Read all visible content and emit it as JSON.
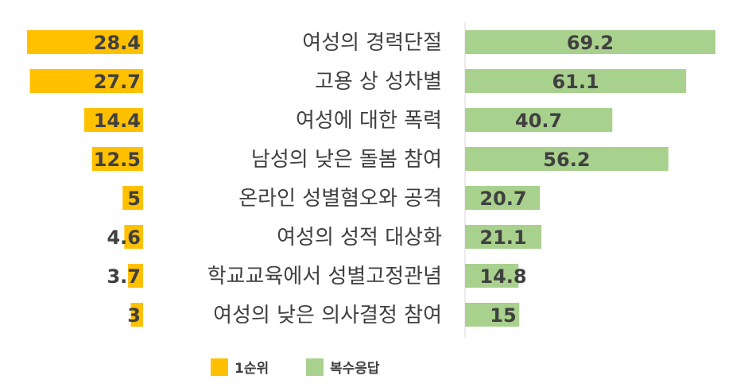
{
  "chart_data": {
    "type": "bar",
    "categories": [
      "여성의 경력단절",
      "고용 상 성차별",
      "여성에 대한 폭력",
      "남성의 낮은 돌봄 참여",
      "온라인 성별혐오와 공격",
      "여성의 성적 대상화",
      "학교교육에서 성별고정관념",
      "여성의 낮은 의사결정 참여"
    ],
    "series": [
      {
        "name": "1순위",
        "color": "#FFC000",
        "values": [
          28.4,
          27.7,
          14.4,
          12.5,
          5,
          4.6,
          3.7,
          3
        ],
        "labels": [
          "28.4",
          "27.7",
          "14.4",
          "12.5",
          "5",
          "4.6",
          "3.7",
          "3"
        ]
      },
      {
        "name": "복수응답",
        "color": "#A9D18E",
        "values": [
          69.2,
          61.1,
          40.7,
          56.2,
          20.7,
          21.1,
          14.8,
          15
        ],
        "labels": [
          "69.2",
          "61.1",
          "40.7",
          "56.2",
          "20.7",
          "21.1",
          "14.8",
          "15"
        ]
      }
    ],
    "legend_position": "bottom",
    "grid": false
  }
}
